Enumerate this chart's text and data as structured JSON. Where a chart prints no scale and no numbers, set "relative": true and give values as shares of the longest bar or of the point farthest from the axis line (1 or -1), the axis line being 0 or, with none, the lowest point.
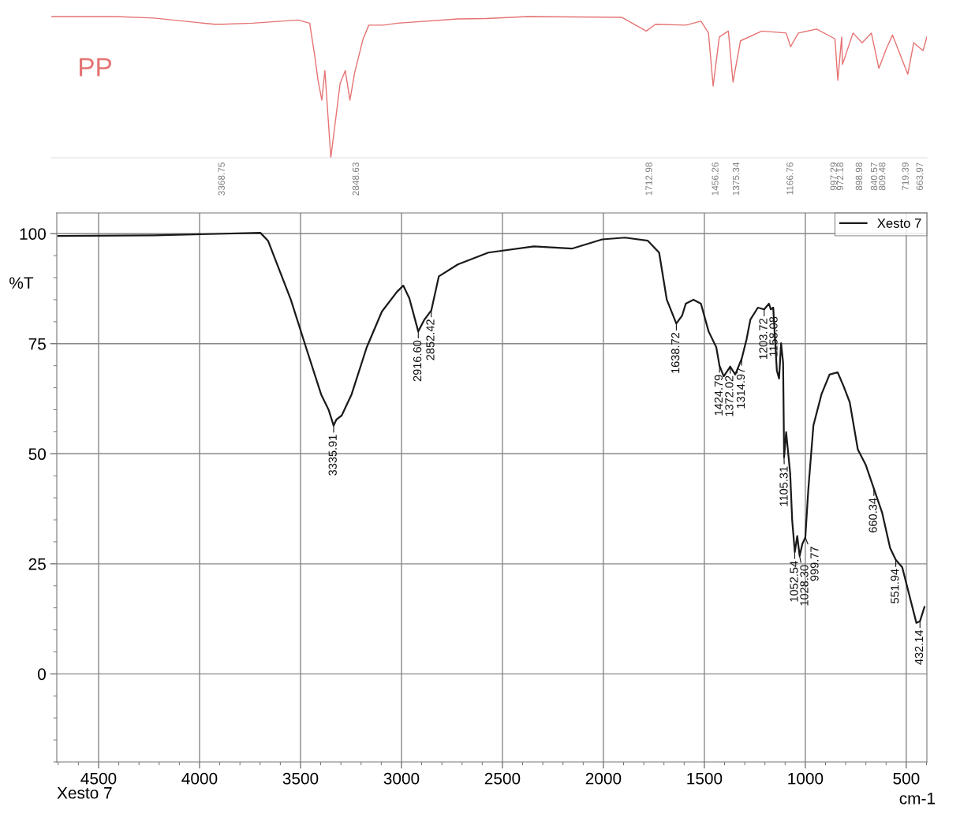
{
  "chart_data": [
    {
      "type": "line",
      "relative": true,
      "xlim": [
        4031,
        639
      ],
      "tick_labels": "x",
      "legend": false,
      "xticks": [
        3368.75,
        2848.63,
        1712.98,
        1456.26,
        1375.34,
        1166.76,
        997.29,
        972.18,
        898.98,
        840.57,
        809.48,
        719.39,
        663.97
      ],
      "series": [
        {
          "name": "PP",
          "color": "#e57373",
          "x": [
            4031,
            3781,
            3634,
            3398,
            3369,
            3251,
            3074,
            3030,
            3010,
            2998,
            2983,
            2971,
            2948,
            2912,
            2892,
            2874,
            2856,
            2824,
            2801,
            2745,
            2689,
            2456,
            2347,
            2185,
            1820,
            1726,
            1690,
            1573,
            1514,
            1485,
            1467,
            1443,
            1408,
            1390,
            1361,
            1278,
            1184,
            1167,
            1137,
            1066,
            995,
            984,
            969,
            966,
            925,
            890,
            854,
            825,
            796,
            772,
            713,
            690,
            654,
            639
          ],
          "values": [
            1,
            1,
            0.989,
            0.945,
            0.945,
            0.953,
            0.975,
            0.953,
            0.717,
            0.554,
            0.408,
            0.617,
            0,
            0.527,
            0.617,
            0.408,
            0.6,
            0.836,
            0.939,
            0.939,
            0.953,
            0.983,
            0.986,
            1,
            0.994,
            0.897,
            0.945,
            0.939,
            0.967,
            0.883,
            0.508,
            0.855,
            0.897,
            0.536,
            0.828,
            0.897,
            0.883,
            0.786,
            0.883,
            0.911,
            0.842,
            0.549,
            0.855,
            0.661,
            0.883,
            0.814,
            0.883,
            0.633,
            0.772,
            0.869,
            0.592,
            0.814,
            0.758,
            0.855
          ]
        }
      ]
    },
    {
      "type": "line",
      "ylabel": "%T",
      "xlabel": "cm-1",
      "xlim": [
        4707,
        398
      ],
      "ylim": [
        -20,
        104.7
      ],
      "xticks": [
        4500,
        4000,
        3500,
        3000,
        2500,
        2000,
        1500,
        1000,
        500
      ],
      "yticks": [
        0,
        25,
        50,
        75,
        100
      ],
      "grid": true,
      "legend": "top right",
      "series": [
        {
          "name": "Xesto 7",
          "color": "#1a1a1a",
          "x": [
            4700,
            4225,
            3699,
            3661,
            3548,
            3473,
            3398,
            3360,
            3336,
            3322,
            3296,
            3247,
            3172,
            3097,
            3022,
            2991,
            2961,
            2917,
            2886,
            2852,
            2815,
            2721,
            2570,
            2344,
            2156,
            2006,
            1893,
            1780,
            1724,
            1686,
            1639,
            1610,
            1592,
            1554,
            1517,
            1479,
            1441,
            1425,
            1404,
            1372,
            1347,
            1315,
            1291,
            1272,
            1235,
            1204,
            1180,
            1171,
            1159,
            1141,
            1130,
            1120,
            1110,
            1105,
            1095,
            1075,
            1065,
            1052,
            1040,
            1028,
            1015,
            1000,
            985,
            960,
            920,
            880,
            840,
            810,
            780,
            740,
            700,
            660,
            620,
            580,
            552,
            520,
            480,
            450,
            432,
            410
          ],
          "values": [
            99.5,
            99.6,
            100.2,
            98.4,
            85.0,
            74.2,
            63.5,
            59.9,
            56.4,
            57.8,
            58.7,
            63.5,
            74.2,
            82.3,
            86.8,
            88.2,
            85.3,
            77.8,
            80.5,
            82.6,
            90.3,
            93.0,
            95.7,
            97.1,
            96.6,
            98.7,
            99.1,
            98.4,
            95.7,
            85.0,
            79.6,
            81.4,
            84.1,
            85.0,
            84.1,
            77.8,
            74.2,
            70,
            67.6,
            69.8,
            68.0,
            71.6,
            76.0,
            80.5,
            83.2,
            82.8,
            84.1,
            82.8,
            83.2,
            68.9,
            67.1,
            75.1,
            70.7,
            49.2,
            54.9,
            45.6,
            34.9,
            27.7,
            31.3,
            26.8,
            29.5,
            31,
            42.0,
            56.4,
            63.5,
            68.0,
            68.5,
            65.3,
            61.7,
            51.0,
            47.4,
            42.0,
            36.7,
            28.6,
            25.9,
            24.2,
            17.0,
            11.6,
            12,
            15.2
          ]
        }
      ],
      "annotations": [
        {
          "text": "3335.91",
          "x": 3335.91,
          "y": 56.4
        },
        {
          "text": "2916.60",
          "x": 2916.6,
          "y": 77.8
        },
        {
          "text": "2852.42",
          "x": 2852.42,
          "y": 82.6
        },
        {
          "text": "1638.72",
          "x": 1638.72,
          "y": 79.6
        },
        {
          "text": "1424.79",
          "x": 1424.79,
          "y": 70
        },
        {
          "text": "1372.02",
          "x": 1372.02,
          "y": 69.8
        },
        {
          "text": "1314.97",
          "x": 1314.97,
          "y": 71.6
        },
        {
          "text": "1203.72",
          "x": 1203.72,
          "y": 82.8
        },
        {
          "text": "1158.08",
          "x": 1158.08,
          "y": 83.2
        },
        {
          "text": "1105.31",
          "x": 1105.31,
          "y": 49.2
        },
        {
          "text": "1052.54",
          "x": 1052.54,
          "y": 27.7
        },
        {
          "text": "1028.30",
          "x": 1028.3,
          "y": 26.8
        },
        {
          "text": "999.77",
          "x": 999.77,
          "y": 31
        },
        {
          "text": "660.34",
          "x": 660.34,
          "y": 42.0
        },
        {
          "text": "551.94",
          "x": 551.94,
          "y": 25.9
        },
        {
          "text": "432.14",
          "x": 432.14,
          "y": 12
        },
        "Xesto 7"
      ]
    }
  ]
}
